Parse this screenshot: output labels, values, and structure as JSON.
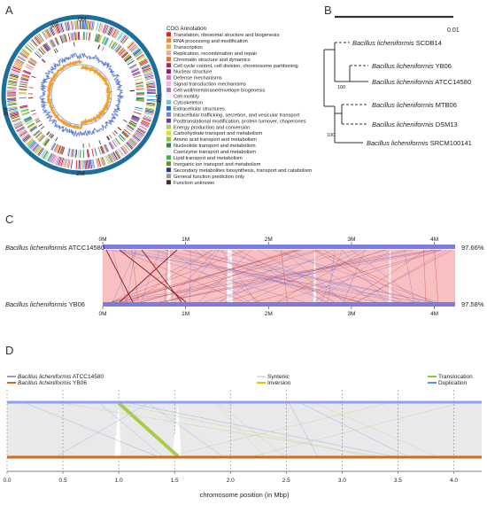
{
  "panels": {
    "a": "A",
    "b": "B",
    "c": "C",
    "d": "D"
  },
  "panel_a": {
    "ring_labels": [
      "0M",
      "1M",
      "2M",
      "3M",
      "4M"
    ],
    "cog_title": "COG Annotation",
    "cog_categories": [
      {
        "label": "Translation, ribosomal structure and biogenesis",
        "color": "#e41a1c"
      },
      {
        "label": "RNA processing and modification",
        "color": "#f08a24"
      },
      {
        "label": "Transcription",
        "color": "#e8b04a"
      },
      {
        "label": "Replication, recombination and repair",
        "color": "#f4a6a0"
      },
      {
        "label": "Chromatin structure and dynamics",
        "color": "#d07a30"
      },
      {
        "label": "Cell cycle control, cell division, chromosome partitioning",
        "color": "#c2185b"
      },
      {
        "label": "Nuclear structure",
        "color": "#8e1f5a"
      },
      {
        "label": "Defense mechanisms",
        "color": "#e86ac0"
      },
      {
        "label": "Signal transduction mechanisms",
        "color": "#f6b8d4"
      },
      {
        "label": "Cell wall/membrane/envelope biogenesis",
        "color": "#b06fd0"
      },
      {
        "label": "Cell motility",
        "color": "#f7f7f7"
      },
      {
        "label": "Cytoskeleton",
        "color": "#5cc8e8"
      },
      {
        "label": "Extracellular structures",
        "color": "#1f6fd0"
      },
      {
        "label": "Intracellular trafficking, secretion, and vesicular transport",
        "color": "#7a7fd6"
      },
      {
        "label": "Posttranslational modification, protein turnover, chaperones",
        "color": "#6a3d9a"
      },
      {
        "label": "Energy production and conversion",
        "color": "#a6d854"
      },
      {
        "label": "Carbohydrate transport and metabolism",
        "color": "#d9e021"
      },
      {
        "label": "Amino acid transport and metabolism",
        "color": "#8cc63f"
      },
      {
        "label": "Nucleotide transport and metabolism",
        "color": "#2d8a3e"
      },
      {
        "label": "Coenzyme transport and metabolism",
        "color": "#f7f7f7"
      },
      {
        "label": "Lipid transport and metabolism",
        "color": "#39b54a"
      },
      {
        "label": "Inorganic ion transport and metabolism",
        "color": "#6b8e23"
      },
      {
        "label": "Secondary metabolites biosynthesis, transport and catabolism",
        "color": "#1a3f8a"
      },
      {
        "label": "General function prediction only",
        "color": "#999999"
      },
      {
        "label": "Function unknown",
        "color": "#333333"
      }
    ]
  },
  "panel_b": {
    "scale_label": "0.01",
    "bootstrap": [
      "100",
      "100"
    ],
    "taxa": [
      {
        "genus": "Bacillus licheniformis",
        "strain": "SCDB14"
      },
      {
        "genus": "Bacillus licheniformis",
        "strain": "YB06"
      },
      {
        "genus": "Bacillus licheniformis",
        "strain": "ATCC14580"
      },
      {
        "genus": "Bacillus licheniformis",
        "strain": "MTB06"
      },
      {
        "genus": "Bacillus licheniformis",
        "strain": "DSM13"
      },
      {
        "genus": "Bacillus licheniformis",
        "strain": "SRCM100141"
      }
    ]
  },
  "panel_c": {
    "top_genus": "Bacillus licheniformis",
    "top_strain": "ATCC14580",
    "top_pct": "97.66%",
    "bottom_genus": "Bacillus licheniformis",
    "bottom_strain": "YB06",
    "bottom_pct": "97.58%",
    "ticks": [
      "0M",
      "1M",
      "2M",
      "3M",
      "4M"
    ]
  },
  "panel_d": {
    "legend_genomes": [
      {
        "genus": "Bacillus licheniformis",
        "strain": "ATCC14580",
        "color": "#b48ad6"
      },
      {
        "genus": "Bacillus licheniformis",
        "strain": "YB06",
        "color": "#d2691e"
      }
    ],
    "legend_events": [
      {
        "label": "Syntenic",
        "color": "#dddddd"
      },
      {
        "label": "Inversion",
        "color": "#e8c200"
      },
      {
        "label": "Translocation",
        "color": "#8cc63f"
      },
      {
        "label": "Duplication",
        "color": "#5b8ef0"
      }
    ],
    "xlabel": "chromosome position (in Mbp)",
    "xticks": [
      "0.0",
      "0.5",
      "1.0",
      "1.5",
      "2.0",
      "2.5",
      "3.0",
      "3.5",
      "4.0"
    ]
  }
}
